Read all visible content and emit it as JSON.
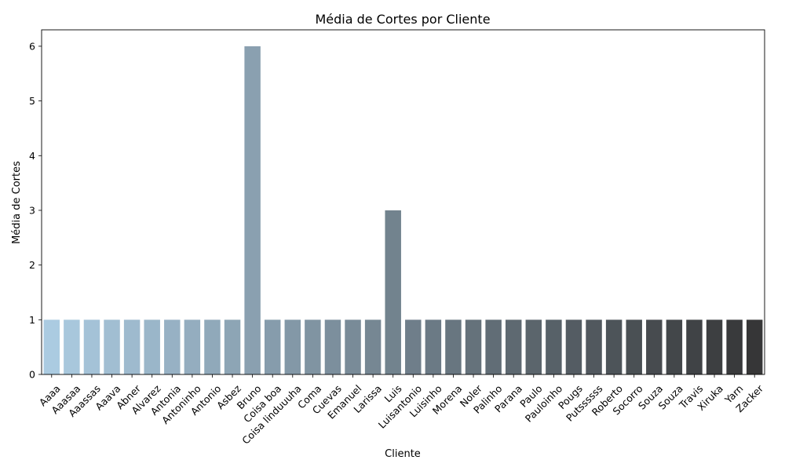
{
  "chart_data": {
    "type": "bar",
    "title": "Média de Cortes por Cliente",
    "xlabel": "Cliente",
    "ylabel": "Média de Cortes",
    "ylim": [
      0,
      6.3
    ],
    "yticks": [
      0,
      1,
      2,
      3,
      4,
      5,
      6
    ],
    "grid": false,
    "legend": "none",
    "palette": "Blues_d (light blue to dark slate)",
    "palette_start": "#abcbe1",
    "palette_end": "#363637",
    "categories": [
      "Aaaa",
      "Aaasaa",
      "Aaassas",
      "Aaava",
      "Abner",
      "Alvarez",
      "Antonia",
      "Antoninho",
      "Antonio",
      "Asbez",
      "Bruno",
      "Coisa boa",
      "Coisa linduuuha",
      "Coma",
      "Cuevas",
      "Emanuel",
      "Larissa",
      "Luis",
      "Luisantonio",
      "Luisinho",
      "Morena",
      "Noler",
      "Palinho",
      "Parana",
      "Paulo",
      "Pauloinho",
      "Pougs",
      "Putssssss",
      "Roberto",
      "Socorro",
      "Souza",
      "Souza",
      "Travis",
      "Xiruka",
      "Yarn",
      "Zacker"
    ],
    "values": [
      1,
      1,
      1,
      1,
      1,
      1,
      1,
      1,
      1,
      1,
      6,
      1,
      1,
      1,
      1,
      1,
      1,
      3,
      1,
      1,
      1,
      1,
      1,
      1,
      1,
      1,
      1,
      1,
      1,
      1,
      1,
      1,
      1,
      1,
      1,
      1
    ]
  }
}
